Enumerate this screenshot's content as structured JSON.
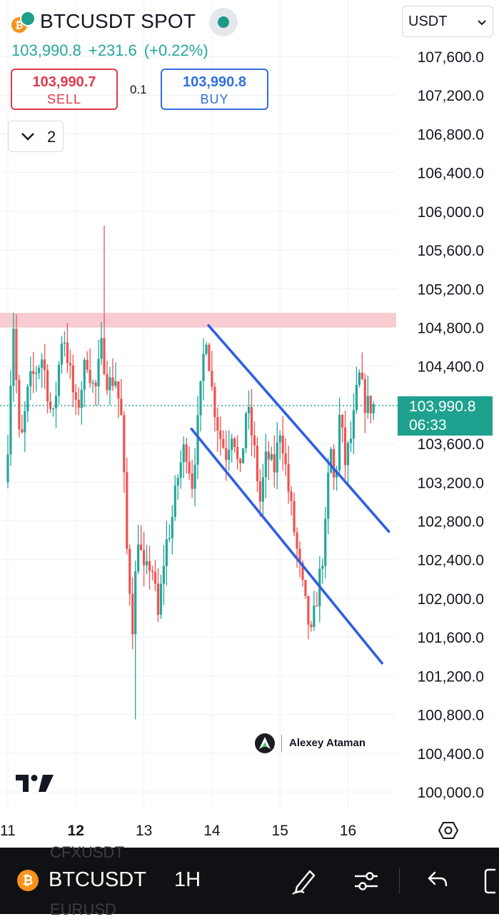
{
  "header": {
    "symbol_title": "BTCUSDT SPOT",
    "coin_glyph": "₿",
    "last_price": "103,990.8",
    "change_abs": "+231.6",
    "change_pct": "(+0.22%)",
    "sell": {
      "price": "103,990.7",
      "label": "SELL"
    },
    "buy": {
      "price": "103,990.8",
      "label": "BUY"
    },
    "spread": "0.1",
    "collapse_count": "2",
    "currency": "USDT",
    "status": "market-open"
  },
  "price_tag": {
    "price": "103,990.8",
    "countdown": "06:33"
  },
  "watermark": {
    "name": "Alexey Ataman"
  },
  "bottom_bar": {
    "coin_glyph": "₿",
    "symbol": "BTCUSDT",
    "interval": "1H",
    "ghost_above": "CFXUSDT",
    "ghost_below": "EURUSD",
    "icons": [
      "draw-pen-icon",
      "indicators-sliders-icon",
      "undo-icon",
      "fullscreen-icon"
    ]
  },
  "colors": {
    "up": "#26a69a",
    "down": "#ef5350",
    "trendline": "#2f5fe6",
    "zone": "#f8c6cc",
    "price_tag": "#1ea28f",
    "sell": "#e03a4b",
    "buy": "#2f6fe0"
  },
  "chart_data": {
    "type": "candlestick",
    "x_ticks": [
      "11",
      "12",
      "13",
      "14",
      "15",
      "16"
    ],
    "x_tick_bold": "12",
    "y_ticks": [
      "100,000.0",
      "100,400.0",
      "100,800.0",
      "101,200.0",
      "101,600.0",
      "102,000.0",
      "102,400.0",
      "102,800.0",
      "103,200.0",
      "103,600.0",
      "104,000.0",
      "104,400.0",
      "104,800.0",
      "105,200.0",
      "105,600.0",
      "106,000.0",
      "106,400.0",
      "106,800.0",
      "107,200.0",
      "107,600.0"
    ],
    "y_range": [
      100000,
      107600
    ],
    "x_range_days": [
      11.0,
      16.4
    ],
    "current_price": 103990.8,
    "resistance_zone": {
      "from": 104800,
      "to": 104950
    },
    "trend_channel": [
      {
        "from": {
          "day": 13.95,
          "price": 104820
        },
        "to": {
          "day": 16.6,
          "price": 102690
        }
      },
      {
        "from": {
          "day": 13.7,
          "price": 103750
        },
        "to": {
          "day": 16.5,
          "price": 101330
        }
      }
    ],
    "anchors": [
      [
        11.0,
        103200
      ],
      [
        11.05,
        103700
      ],
      [
        11.12,
        104900
      ],
      [
        11.22,
        103500
      ],
      [
        11.35,
        104200
      ],
      [
        11.55,
        104500
      ],
      [
        11.7,
        103800
      ],
      [
        11.85,
        104800
      ],
      [
        12.05,
        103900
      ],
      [
        12.2,
        104500
      ],
      [
        12.32,
        104100
      ],
      [
        12.42,
        104600
      ],
      [
        12.52,
        104200
      ],
      [
        12.62,
        104300
      ],
      [
        12.72,
        103800
      ],
      [
        12.78,
        102600
      ],
      [
        12.88,
        101700
      ],
      [
        12.95,
        102700
      ],
      [
        13.05,
        102200
      ],
      [
        13.15,
        102400
      ],
      [
        13.25,
        101800
      ],
      [
        13.35,
        102500
      ],
      [
        13.45,
        102800
      ],
      [
        13.55,
        103300
      ],
      [
        13.65,
        103600
      ],
      [
        13.75,
        103200
      ],
      [
        13.85,
        103900
      ],
      [
        13.95,
        104800
      ],
      [
        14.05,
        104100
      ],
      [
        14.15,
        103700
      ],
      [
        14.25,
        103500
      ],
      [
        14.35,
        103800
      ],
      [
        14.45,
        103200
      ],
      [
        14.55,
        104000
      ],
      [
        14.65,
        103600
      ],
      [
        14.75,
        103000
      ],
      [
        14.85,
        103500
      ],
      [
        14.95,
        103300
      ],
      [
        15.05,
        103800
      ],
      [
        15.15,
        103200
      ],
      [
        15.25,
        102700
      ],
      [
        15.35,
        102200
      ],
      [
        15.42,
        101900
      ],
      [
        15.5,
        101600
      ],
      [
        15.6,
        102100
      ],
      [
        15.7,
        102600
      ],
      [
        15.78,
        103600
      ],
      [
        15.85,
        103100
      ],
      [
        15.92,
        103900
      ],
      [
        16.0,
        103400
      ],
      [
        16.1,
        103700
      ],
      [
        16.2,
        104300
      ],
      [
        16.3,
        104000
      ],
      [
        16.38,
        103990
      ]
    ],
    "visible_extremes": {
      "high": 105850,
      "low": 100750
    },
    "grid": true
  }
}
